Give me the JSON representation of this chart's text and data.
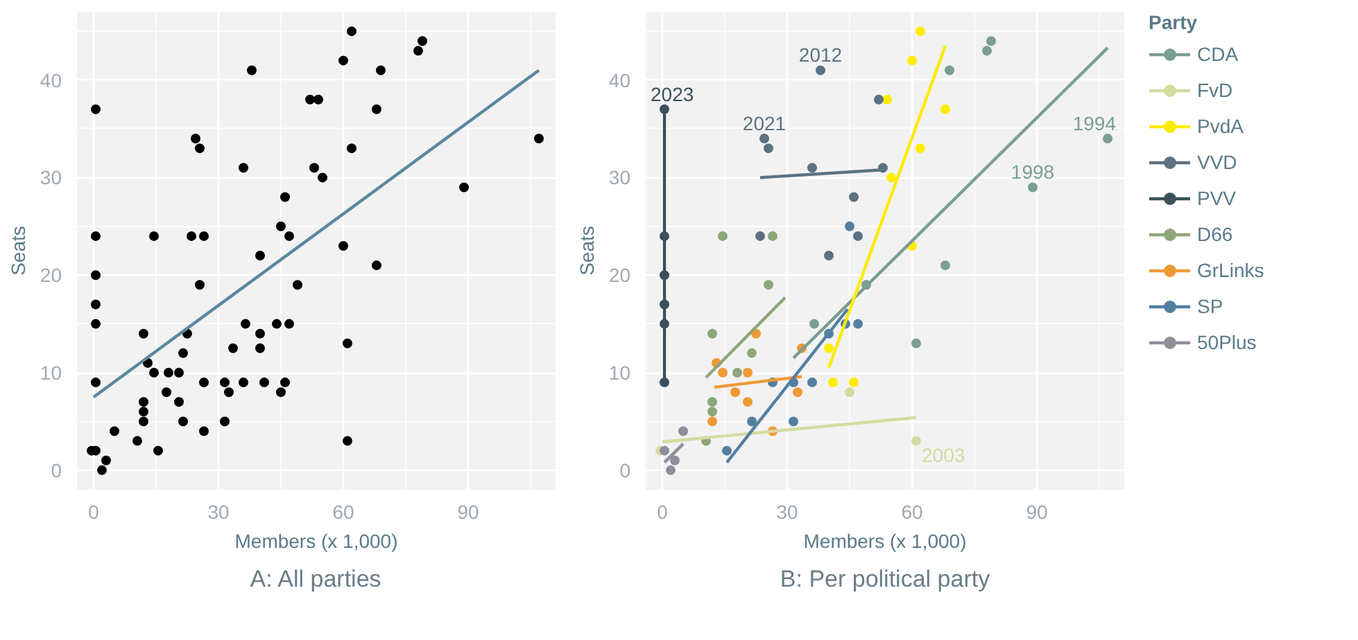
{
  "chart_data": [
    {
      "type": "scatter",
      "title": "A: All parties",
      "xlabel": "Members (x 1,000)",
      "ylabel": "Seats",
      "xlim": [
        -4,
        111
      ],
      "ylim": [
        -2,
        47
      ],
      "xticks": [
        0,
        30,
        60,
        90
      ],
      "yticks": [
        0,
        10,
        20,
        30,
        40
      ],
      "grid": true,
      "legend": false,
      "marker": "circle",
      "series": [
        {
          "color": "#000000",
          "x": [
            69,
            78,
            79,
            107,
            89,
            68,
            61,
            49,
            36.5,
            -0.5,
            45,
            61,
            62,
            60,
            54,
            68,
            62,
            55,
            60,
            40,
            41,
            46,
            38,
            52,
            24.5,
            25.5,
            36,
            53,
            46,
            47,
            23.5,
            40,
            0.5,
            0.5,
            0.5,
            0.5,
            0.5,
            0.5,
            14.5,
            26.5,
            25.5,
            12,
            21.5,
            18,
            12,
            12,
            10.5,
            22.5,
            13,
            14.5,
            20.5,
            17.5,
            20.5,
            12,
            26.5,
            33.5,
            32.5,
            45,
            40,
            44,
            47,
            36,
            26.5,
            31.5,
            21.5,
            31.5,
            15.5,
            0.5,
            5,
            3,
            2
          ],
          "values": [
            41,
            43,
            44,
            34,
            29,
            21,
            13,
            19,
            15,
            2,
            8,
            3,
            45,
            42,
            38,
            37,
            33,
            30,
            23,
            12.5,
            9,
            9,
            41,
            38,
            34,
            33,
            31,
            31,
            28,
            24,
            24,
            22,
            37,
            24,
            20,
            17,
            15,
            9,
            24,
            24,
            19,
            14,
            12,
            10,
            7,
            6,
            3,
            14,
            11,
            10,
            10,
            8,
            7,
            5,
            4,
            12.5,
            8,
            25,
            14,
            15,
            15,
            9,
            9,
            9,
            5,
            5,
            2,
            2,
            4,
            1,
            0
          ]
        },
        {
          "type": "line",
          "marker": "none",
          "color": "#5b87a0",
          "x": [
            0,
            107
          ],
          "values": [
            7.5,
            41
          ]
        }
      ]
    },
    {
      "type": "scatter",
      "title": "B: Per political party",
      "xlabel": "Members (x 1,000)",
      "ylabel": "Seats",
      "xlim": [
        -4,
        111
      ],
      "ylim": [
        -2,
        47
      ],
      "xticks": [
        0,
        30,
        60,
        90
      ],
      "yticks": [
        0,
        10,
        20,
        30,
        40
      ],
      "grid": true,
      "legend": "right",
      "legend_title": "Party",
      "marker": "circle",
      "annotations": [
        {
          "text": "2023",
          "x": 0.5,
          "y": 37
        },
        {
          "text": "2012",
          "x": 38,
          "y": 41
        },
        {
          "text": "2021",
          "x": 24.5,
          "y": 34
        },
        {
          "text": "1994",
          "x": 107,
          "y": 34
        },
        {
          "text": "1998",
          "x": 89,
          "y": 29
        },
        {
          "text": "2003",
          "x": 61,
          "y": 3
        }
      ],
      "series": [
        {
          "name": "CDA",
          "color": "#7a9e8f",
          "x": [
            69,
            78,
            79,
            107,
            89,
            68,
            61,
            49,
            36.5
          ],
          "values": [
            41,
            43,
            44,
            34,
            29,
            21,
            13,
            19,
            15
          ]
        },
        {
          "name": "FvD",
          "color": "#d4dba0",
          "x": [
            -0.5,
            45,
            61
          ],
          "values": [
            2,
            8,
            3
          ]
        },
        {
          "name": "PvdA",
          "color": "#ffec00",
          "x": [
            62,
            60,
            54,
            68,
            62,
            55,
            60,
            40,
            41,
            46
          ],
          "values": [
            45,
            42,
            38,
            37,
            33,
            30,
            23,
            12.5,
            9,
            9
          ]
        },
        {
          "name": "VVD",
          "color": "#5c7282",
          "x": [
            38,
            52,
            24.5,
            25.5,
            36,
            53,
            46,
            47,
            23.5,
            40
          ],
          "values": [
            41,
            38,
            34,
            33,
            31,
            31,
            28,
            24,
            24,
            22
          ]
        },
        {
          "name": "PVV",
          "color": "#3b5058",
          "x": [
            0.5,
            0.5,
            0.5,
            0.5,
            0.5,
            0.5
          ],
          "values": [
            37,
            24,
            20,
            17,
            15,
            9
          ]
        },
        {
          "name": "D66",
          "color": "#8ea67a",
          "x": [
            14.5,
            26.5,
            25.5,
            12,
            21.5,
            18,
            12,
            12,
            10.5
          ],
          "values": [
            24,
            24,
            19,
            14,
            12,
            10,
            7,
            6,
            3
          ]
        },
        {
          "name": "GrLinks",
          "color": "#ef9a35",
          "x": [
            22.5,
            13,
            14.5,
            20.5,
            17.5,
            20.5,
            12,
            26.5,
            33.5,
            32.5
          ],
          "values": [
            14,
            11,
            10,
            10,
            8,
            7,
            5,
            4,
            12.5,
            8
          ]
        },
        {
          "name": "SP",
          "color": "#537fa0",
          "x": [
            45,
            40,
            44,
            47,
            36,
            26.5,
            31.5,
            21.5,
            31.5,
            15.5
          ],
          "values": [
            25,
            14,
            15,
            15,
            9,
            9,
            9,
            5,
            5,
            2
          ]
        },
        {
          "name": "50Plus",
          "color": "#8c8f99",
          "x": [
            0.5,
            5,
            3,
            2
          ],
          "values": [
            2,
            4,
            1,
            0
          ]
        },
        {
          "type": "line",
          "marker": "none",
          "color": "#7a9e8f",
          "x": [
            31.5,
            107
          ],
          "values": [
            11.5,
            43.3
          ]
        },
        {
          "type": "line",
          "marker": "none",
          "color": "#d4dba0",
          "x": [
            0,
            61
          ],
          "values": [
            2.9,
            5.4
          ]
        },
        {
          "type": "line",
          "marker": "none",
          "color": "#ffec00",
          "x": [
            40,
            68
          ],
          "values": [
            10.5,
            43.5
          ]
        },
        {
          "type": "line",
          "marker": "none",
          "color": "#5c7282",
          "x": [
            23.5,
            53
          ],
          "values": [
            30,
            30.8
          ]
        },
        {
          "type": "line",
          "marker": "none",
          "color": "#3b5058",
          "x": [
            0.5,
            0.5
          ],
          "values": [
            9,
            37
          ]
        },
        {
          "type": "line",
          "marker": "none",
          "color": "#8ea67a",
          "x": [
            10.5,
            29.5
          ],
          "values": [
            9.5,
            17.7
          ]
        },
        {
          "type": "line",
          "marker": "none",
          "color": "#ef9a35",
          "x": [
            12.5,
            33.5
          ],
          "values": [
            8.5,
            9.6
          ]
        },
        {
          "type": "line",
          "marker": "none",
          "color": "#537fa0",
          "x": [
            15.5,
            44.5
          ],
          "values": [
            0.8,
            16.5
          ]
        },
        {
          "type": "line",
          "marker": "none",
          "color": "#8c8f99",
          "x": [
            0.5,
            5
          ],
          "values": [
            0.8,
            2.7
          ]
        }
      ]
    }
  ]
}
